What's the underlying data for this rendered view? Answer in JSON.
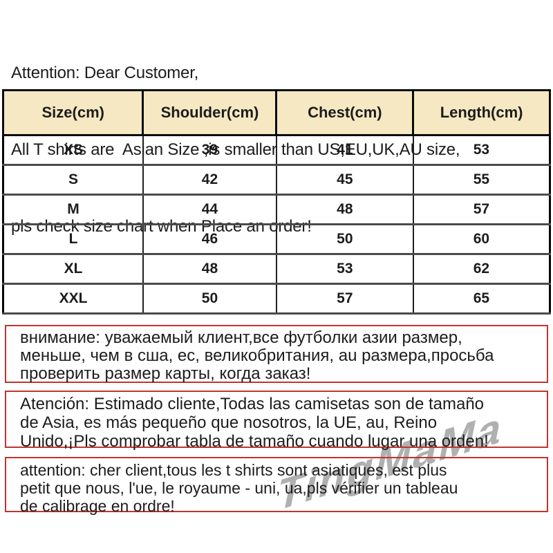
{
  "top_note": {
    "lines": [
      "Attention: Dear Customer,",
      "All T shirts are  Asian Size ,is smaller than US,EU,UK,AU size,",
      "pls check size chart when Place an order!"
    ]
  },
  "size_table": {
    "headers": [
      "Size(cm)",
      "Shoulder(cm)",
      "Chest(cm)",
      "Length(cm)"
    ],
    "rows": [
      {
        "size": "XS",
        "shoulder": "39",
        "chest": "41",
        "length": "53"
      },
      {
        "size": "S",
        "shoulder": "42",
        "chest": "45",
        "length": "55"
      },
      {
        "size": "M",
        "shoulder": "44",
        "chest": "48",
        "length": "57"
      },
      {
        "size": "L",
        "shoulder": "46",
        "chest": "50",
        "length": "60"
      },
      {
        "size": "XL",
        "shoulder": "48",
        "chest": "53",
        "length": "62"
      },
      {
        "size": "XXL",
        "shoulder": "50",
        "chest": "57",
        "length": "65"
      }
    ],
    "header_bg_color": "#f6e8c2",
    "border_color": "#000000"
  },
  "alerts": [
    {
      "language": "russian",
      "lines": [
        "внимание: уважаемый клиент,все футболки азии размер,",
        "меньше, чем в сша, ес, великобритания, au размера,просьба",
        "проверить размер карты, когда заказ!"
      ]
    },
    {
      "language": "spanish",
      "lines": [
        "Atención: Estimado cliente,Todas las camisetas son de tamaño",
        "de Asia, es más pequeño que nosotros, la UE, au, Reino",
        "Unido,¡Pls comprobar tabla de tamaño cuando lugar una orden!"
      ]
    },
    {
      "language": "french",
      "lines": [
        "attention: cher client,tous les t shirts sont asiatiques, est plus",
        "petit que nous, l'ue, le royaume - uni, ua,pls vérifier un tableau",
        "de calibrage en ordre!"
      ]
    }
  ],
  "alert_border_color": "#c2342c",
  "watermark": {
    "text": "TingMaMa",
    "color": "#9b9b9b"
  }
}
